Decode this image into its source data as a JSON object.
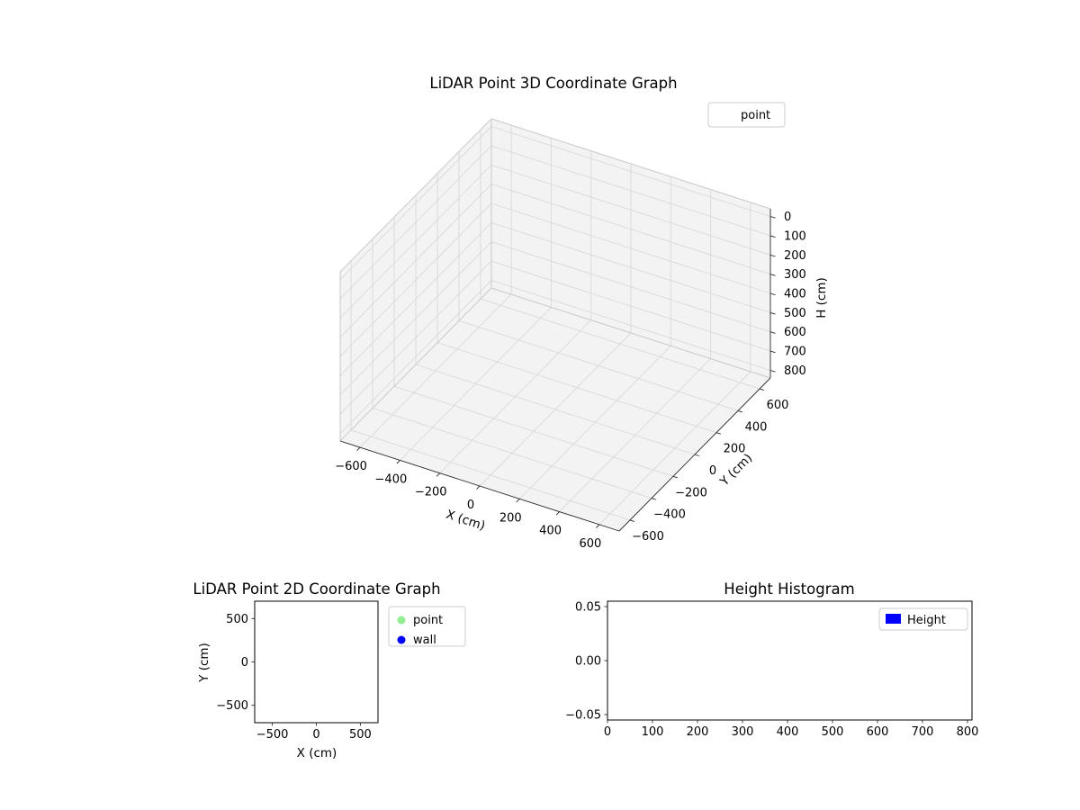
{
  "figure": {
    "background": "#ffffff"
  },
  "chart_data": [
    {
      "id": "lidar-3d",
      "type": "scatter3d",
      "title": "LiDAR Point 3D Coordinate Graph",
      "xlabel": "X (cm)",
      "ylabel": "Y (cm)",
      "zlabel": "H (cm)",
      "xlim": [
        -700,
        700
      ],
      "ylim": [
        -700,
        700
      ],
      "zlim": [
        0,
        800
      ],
      "z_axis_inverted": true,
      "grid": true,
      "xticks": {
        "values": [
          -600,
          -400,
          -200,
          0,
          200,
          400,
          600
        ],
        "labels": [
          "−600",
          "−400",
          "−200",
          "0",
          "200",
          "400",
          "600"
        ]
      },
      "yticks": {
        "values": [
          -600,
          -400,
          -200,
          0,
          200,
          400,
          600
        ],
        "labels": [
          "−600",
          "−400",
          "−200",
          "0",
          "200",
          "400",
          "600"
        ]
      },
      "zticks": {
        "values": [
          0,
          100,
          200,
          300,
          400,
          500,
          600,
          700,
          800
        ],
        "labels": [
          "0",
          "100",
          "200",
          "300",
          "400",
          "500",
          "600",
          "700",
          "800"
        ]
      },
      "legend": {
        "position": "upper right",
        "entries": [
          {
            "label": "point",
            "marker": "none"
          }
        ]
      },
      "series": [
        {
          "name": "point",
          "points": []
        }
      ]
    },
    {
      "id": "lidar-2d",
      "type": "scatter",
      "title": "LiDAR Point 2D Coordinate Graph",
      "xlabel": "X (cm)",
      "ylabel": "Y (cm)",
      "xlim": [
        -700,
        700
      ],
      "ylim": [
        -700,
        700
      ],
      "grid": false,
      "xticks": {
        "values": [
          -500,
          0,
          500
        ],
        "labels": [
          "−500",
          "0",
          "500"
        ]
      },
      "yticks": {
        "values": [
          -500,
          0,
          500
        ],
        "labels": [
          "−500",
          "0",
          "500"
        ]
      },
      "legend": {
        "position": "outside right",
        "entries": [
          {
            "label": "point",
            "marker": "circle",
            "color": "#90ee90"
          },
          {
            "label": "wall",
            "marker": "circle",
            "color": "#0000ff"
          }
        ]
      },
      "series": [
        {
          "name": "point",
          "color": "#90ee90",
          "points": []
        },
        {
          "name": "wall",
          "color": "#0000ff",
          "points": []
        }
      ]
    },
    {
      "id": "height-histogram",
      "type": "bar",
      "title": "Height Histogram",
      "xlabel": "",
      "ylabel": "",
      "xlim": [
        0,
        810
      ],
      "ylim": [
        -0.055,
        0.055
      ],
      "grid": false,
      "xticks": {
        "values": [
          0,
          100,
          200,
          300,
          400,
          500,
          600,
          700,
          800
        ],
        "labels": [
          "0",
          "100",
          "200",
          "300",
          "400",
          "500",
          "600",
          "700",
          "800"
        ]
      },
      "yticks": {
        "values": [
          -0.05,
          0,
          0.05
        ],
        "labels": [
          "−0.05",
          "0.00",
          "0.05"
        ]
      },
      "legend": {
        "position": "upper right",
        "entries": [
          {
            "label": "Height",
            "marker": "patch",
            "color": "#0000ff"
          }
        ]
      },
      "series": [
        {
          "name": "Height",
          "color": "#0000ff",
          "bin_edges": [],
          "counts": []
        }
      ]
    }
  ]
}
